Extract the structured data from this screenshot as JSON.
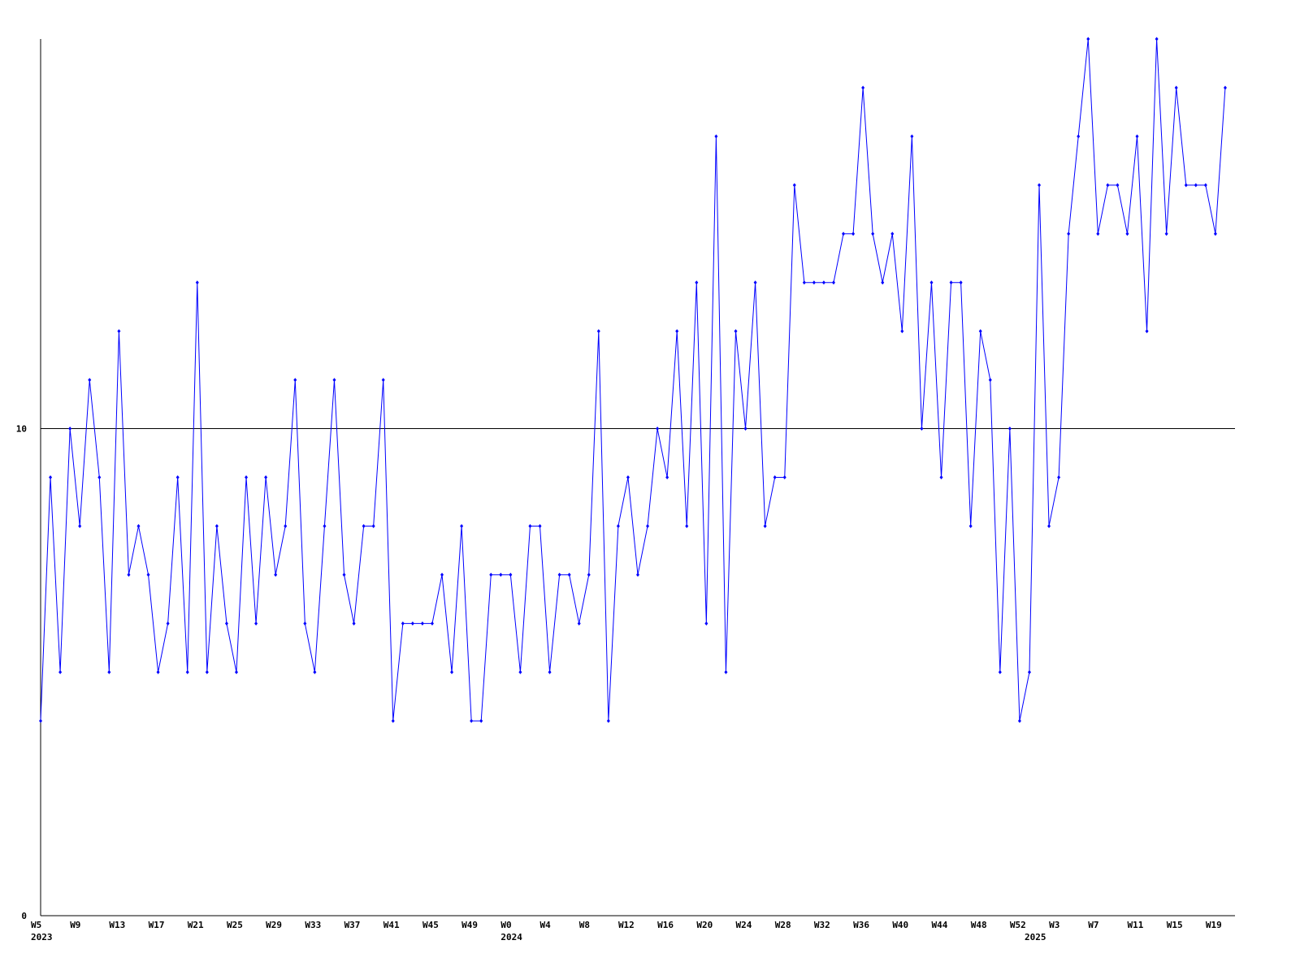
{
  "chart_data": {
    "type": "line",
    "categories": [
      "W5",
      null,
      null,
      null,
      "W9",
      null,
      null,
      null,
      "W13",
      null,
      null,
      null,
      "W17",
      null,
      null,
      null,
      "W21",
      null,
      null,
      null,
      "W25",
      null,
      null,
      null,
      "W29",
      null,
      null,
      null,
      "W33",
      null,
      null,
      null,
      "W37",
      null,
      null,
      null,
      "W41",
      null,
      null,
      null,
      "W45",
      null,
      null,
      null,
      "W49",
      null,
      null,
      null,
      "W0",
      null,
      null,
      null,
      "W4",
      null,
      null,
      null,
      "W8",
      null,
      null,
      null,
      "W12",
      null,
      null,
      null,
      "W16",
      null,
      null,
      null,
      "W20",
      null,
      null,
      null,
      "W24",
      null,
      null,
      null,
      "W28",
      null,
      null,
      null,
      "W32",
      null,
      null,
      null,
      "W36",
      null,
      null,
      null,
      "W40",
      null,
      null,
      null,
      "W44",
      null,
      null,
      null,
      "W48",
      null,
      null,
      null,
      "W52",
      null,
      null,
      null,
      "W3",
      null,
      null,
      null,
      "W7",
      null,
      null,
      null,
      "W11",
      null,
      null,
      null,
      "W15",
      null,
      null,
      null,
      "W19",
      null
    ],
    "category_years": [
      "2023",
      null,
      null,
      null,
      null,
      null,
      null,
      null,
      null,
      null,
      null,
      null,
      null,
      null,
      null,
      null,
      null,
      null,
      null,
      null,
      null,
      null,
      null,
      null,
      null,
      null,
      null,
      null,
      null,
      null,
      null,
      null,
      null,
      null,
      null,
      null,
      null,
      null,
      null,
      null,
      null,
      null,
      null,
      null,
      null,
      null,
      null,
      null,
      "2024",
      null,
      null,
      null,
      null,
      null,
      null,
      null,
      null,
      null,
      null,
      null,
      null,
      null,
      null,
      null,
      null,
      null,
      null,
      null,
      null,
      null,
      null,
      null,
      null,
      null,
      null,
      null,
      null,
      null,
      null,
      null,
      null,
      null,
      null,
      null,
      null,
      null,
      null,
      null,
      null,
      null,
      null,
      null,
      null,
      null,
      null,
      null,
      null,
      null,
      null,
      null,
      null,
      "2025",
      null,
      null,
      null,
      null,
      null,
      null,
      null,
      null,
      null,
      null,
      null,
      null,
      null,
      null,
      null,
      null,
      null,
      null,
      null,
      null
    ],
    "series": [
      {
        "color": "#0000ff",
        "values": [
          4,
          9,
          5,
          10,
          8,
          11,
          9,
          5,
          12,
          7,
          8,
          7,
          5,
          6,
          9,
          5,
          13,
          5,
          8,
          6,
          5,
          9,
          6,
          9,
          7,
          8,
          11,
          6,
          5,
          8,
          11,
          7,
          6,
          8,
          8,
          11,
          4,
          6,
          6,
          6,
          6,
          7,
          5,
          8,
          4,
          4,
          7,
          7,
          7,
          5,
          8,
          8,
          5,
          7,
          7,
          6,
          7,
          12,
          4,
          8,
          9,
          7,
          8,
          10,
          9,
          12,
          8,
          13,
          6,
          16,
          5,
          12,
          10,
          13,
          8,
          9,
          9,
          15,
          13,
          13,
          13,
          13,
          14,
          14,
          17,
          14,
          13,
          14,
          12,
          16,
          10,
          13,
          9,
          13,
          13,
          8,
          12,
          11,
          5,
          10,
          4,
          5,
          15,
          8,
          9,
          14,
          16,
          18,
          14,
          15,
          15,
          14,
          16,
          12,
          18,
          14,
          17,
          15,
          15,
          15,
          14,
          17
        ]
      }
    ],
    "ylim": [
      0,
      18
    ],
    "yticks": [
      0,
      10
    ],
    "grid": true
  }
}
